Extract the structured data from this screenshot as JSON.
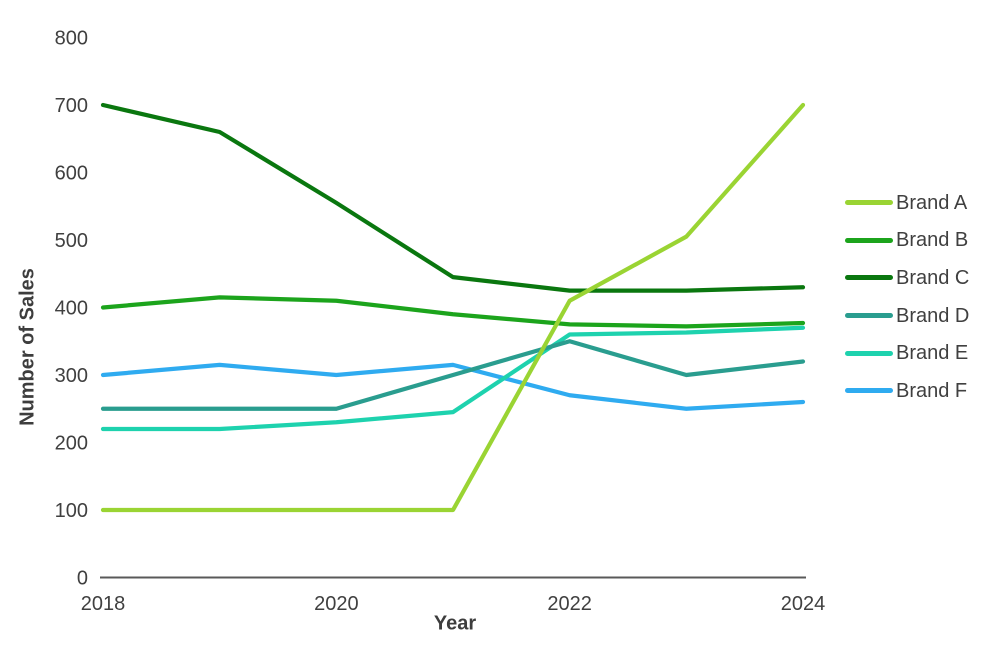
{
  "chart_data": {
    "type": "line",
    "title": "",
    "xlabel": "Year",
    "ylabel": "Number of Sales",
    "x": [
      2018,
      2019,
      2020,
      2021,
      2022,
      2023,
      2024
    ],
    "xlim": [
      2018,
      2024
    ],
    "ylim": [
      0,
      800
    ],
    "xticks": [
      2018,
      2020,
      2022,
      2024
    ],
    "yticks": [
      0,
      100,
      200,
      300,
      400,
      500,
      600,
      700,
      800
    ],
    "grid": false,
    "legend_position": "right",
    "background_color": "#ffffff",
    "axis_color": "#595959",
    "text_color": "#404040",
    "series": [
      {
        "name": "Brand A",
        "color": "#9ad433",
        "values": [
          100,
          100,
          100,
          100,
          410,
          505,
          700
        ]
      },
      {
        "name": "Brand B",
        "color": "#1ca41c",
        "values": [
          400,
          415,
          410,
          390,
          375,
          372,
          377
        ]
      },
      {
        "name": "Brand C",
        "color": "#0a770f",
        "values": [
          700,
          660,
          555,
          445,
          425,
          425,
          430
        ]
      },
      {
        "name": "Brand D",
        "color": "#2a9d8f",
        "values": [
          250,
          250,
          250,
          300,
          350,
          300,
          320
        ]
      },
      {
        "name": "Brand E",
        "color": "#1ed2ae",
        "values": [
          220,
          220,
          230,
          245,
          360,
          363,
          370
        ]
      },
      {
        "name": "Brand F",
        "color": "#2fabf0",
        "values": [
          300,
          315,
          300,
          315,
          270,
          250,
          260
        ]
      }
    ]
  }
}
